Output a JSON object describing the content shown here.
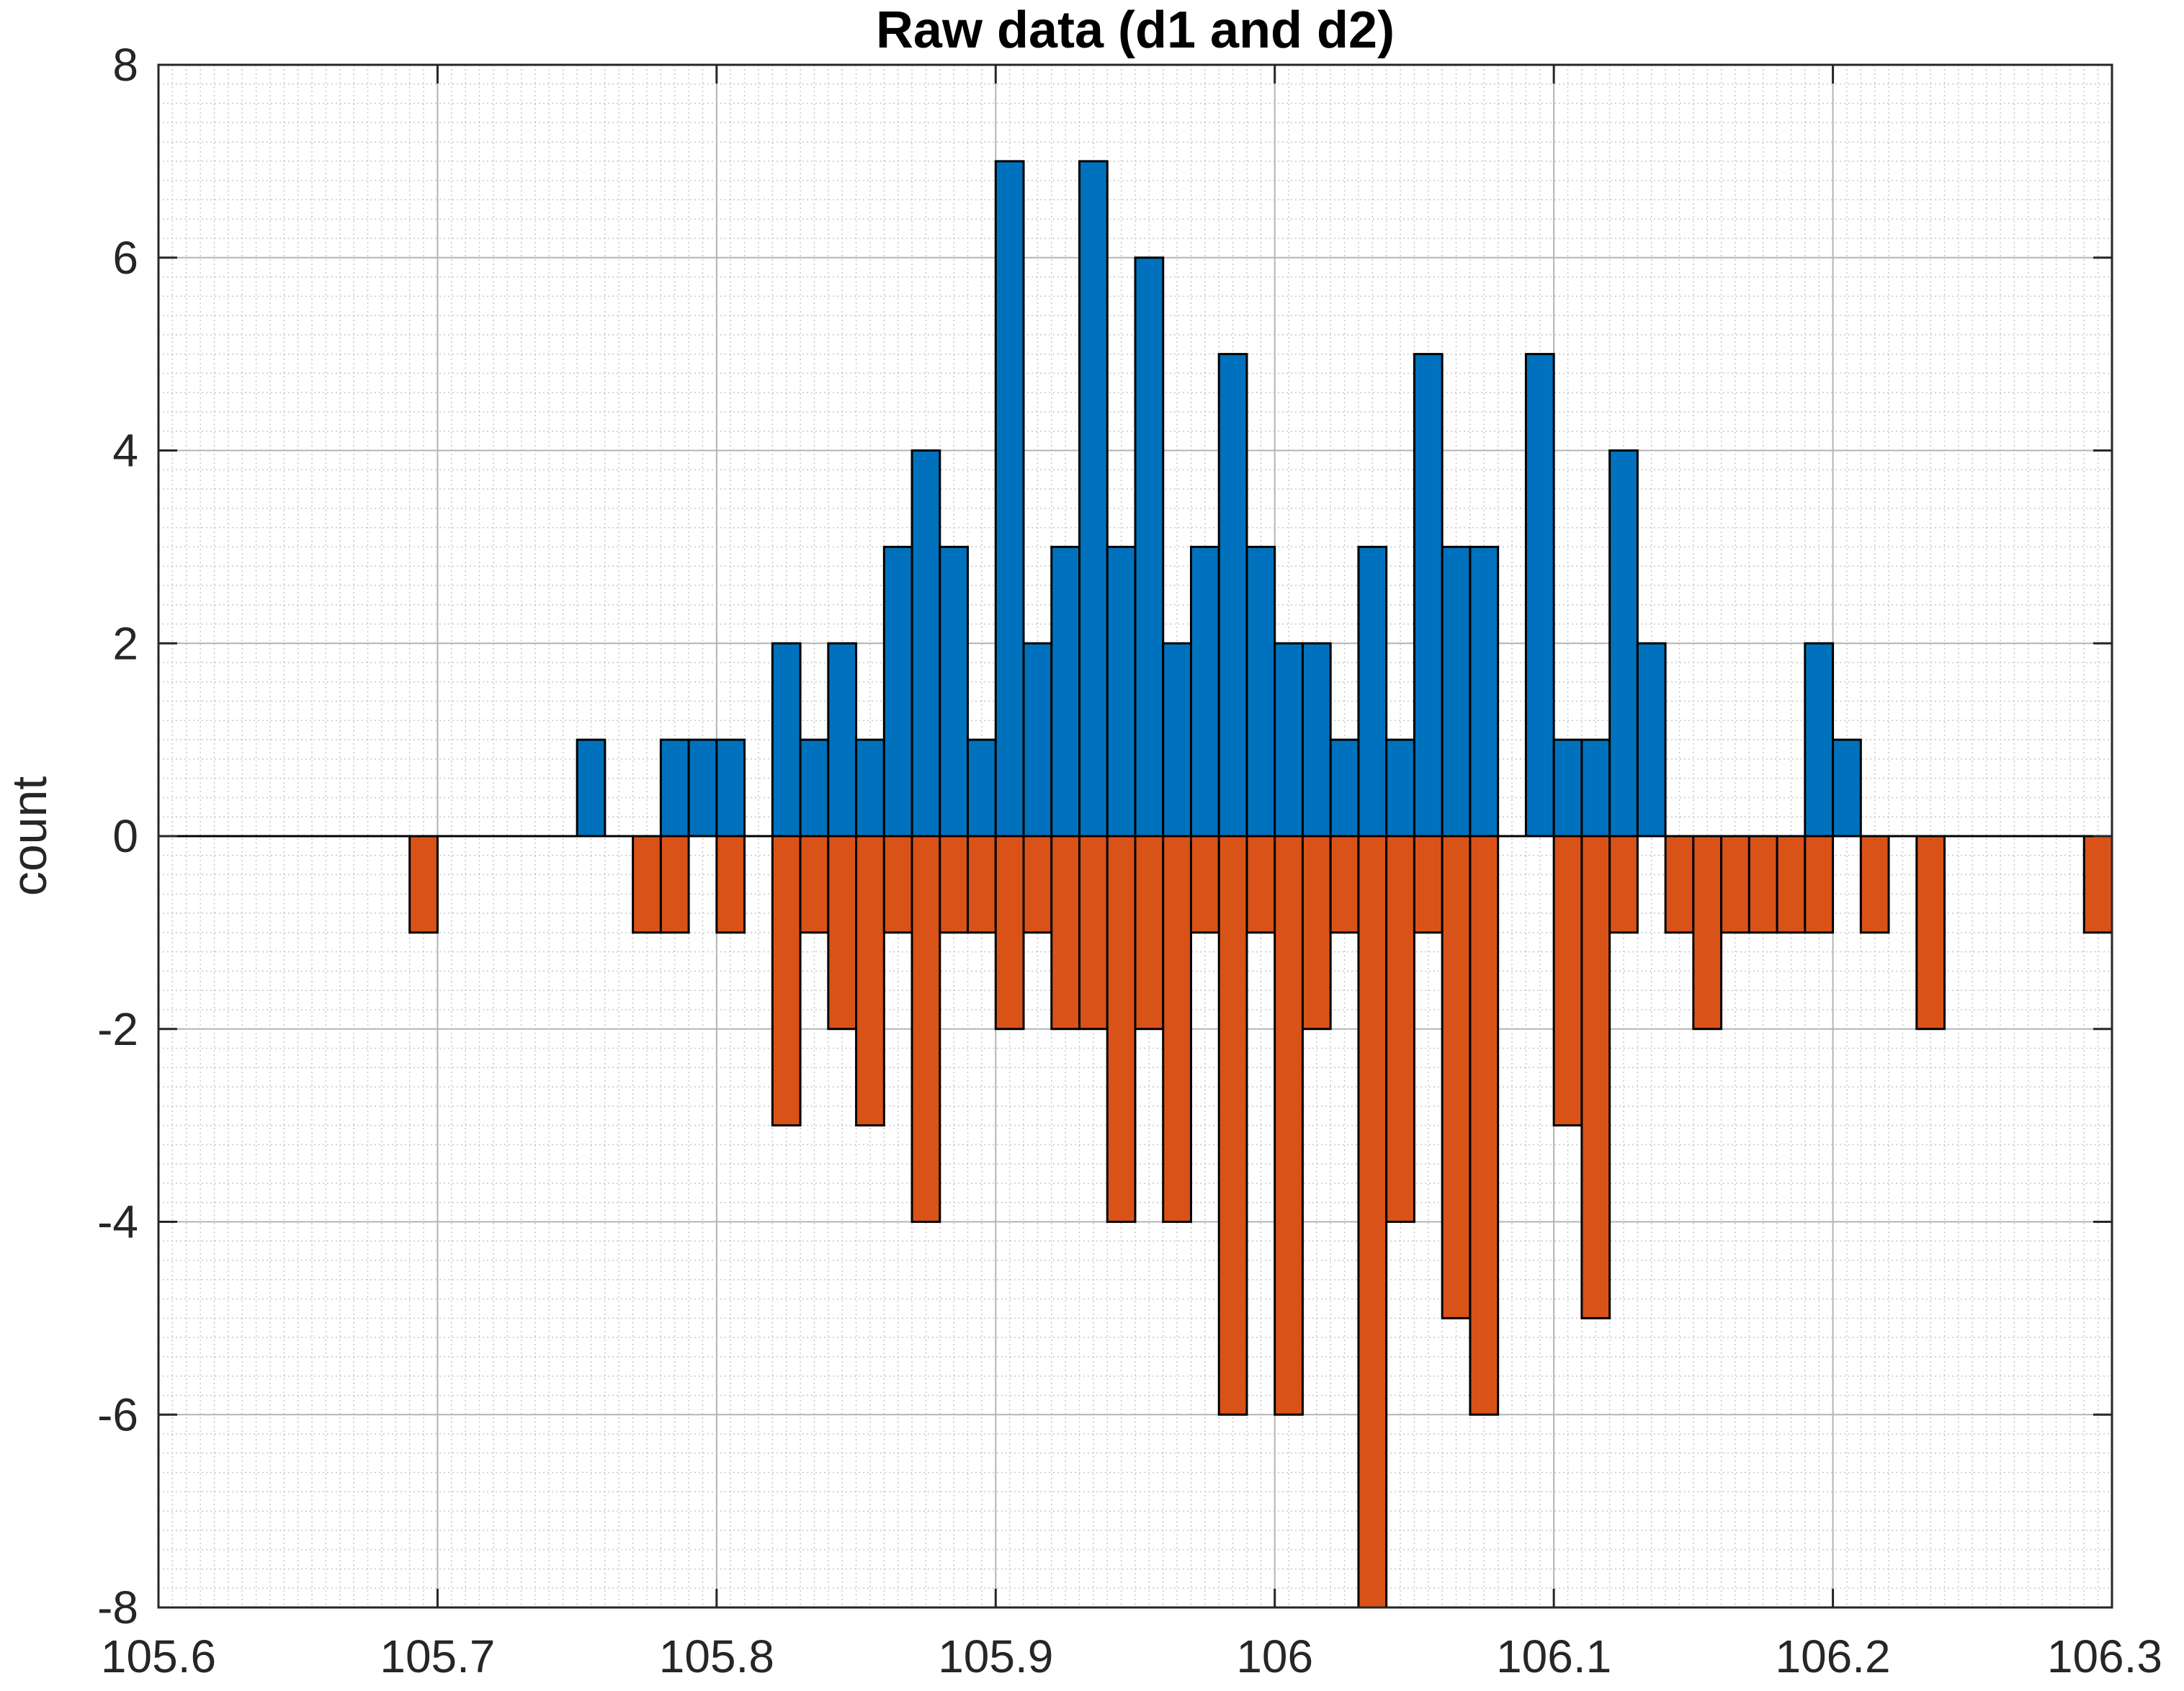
{
  "chart_data": {
    "type": "bar",
    "title": "Raw data (d1 and d2)",
    "xlabel": "",
    "ylabel": "count",
    "xlim": [
      105.6,
      106.3
    ],
    "ylim": [
      -8,
      8
    ],
    "grid": "major and minor",
    "bin_width": 0.01,
    "x_ticks": [
      105.6,
      105.7,
      105.8,
      105.9,
      106,
      106.1,
      106.2,
      106.3
    ],
    "x_tick_labels": [
      "105.6",
      "105.7",
      "105.8",
      "105.9",
      "106",
      "106.1",
      "106.2",
      "106.3"
    ],
    "y_ticks": [
      8,
      6,
      4,
      2,
      0,
      -2,
      -4,
      -6,
      -8
    ],
    "y_tick_labels": [
      "8",
      "6",
      "4",
      "2",
      "0",
      "-2",
      "-4",
      "-6",
      "-8"
    ],
    "series": [
      {
        "color": "#0072BD",
        "bin_starts": [
          105.75,
          105.78,
          105.79,
          105.8,
          105.82,
          105.83,
          105.84,
          105.85,
          105.86,
          105.87,
          105.88,
          105.89,
          105.9,
          105.91,
          105.92,
          105.93,
          105.94,
          105.95,
          105.96,
          105.97,
          105.98,
          105.99,
          106.0,
          106.01,
          106.02,
          106.03,
          106.04,
          106.05,
          106.06,
          106.07,
          106.09,
          106.1,
          106.11,
          106.12,
          106.13,
          106.19,
          106.2
        ],
        "values": [
          1,
          1,
          1,
          1,
          2,
          1,
          2,
          1,
          3,
          4,
          3,
          1,
          7,
          2,
          3,
          7,
          3,
          6,
          2,
          3,
          5,
          3,
          2,
          2,
          1,
          3,
          1,
          5,
          3,
          3,
          5,
          1,
          1,
          4,
          2,
          2,
          1
        ]
      },
      {
        "color": "#D95319",
        "bin_starts": [
          105.69,
          105.77,
          105.78,
          105.8,
          105.82,
          105.83,
          105.84,
          105.85,
          105.86,
          105.87,
          105.88,
          105.89,
          105.9,
          105.91,
          105.92,
          105.93,
          105.94,
          105.95,
          105.96,
          105.97,
          105.98,
          105.99,
          106.0,
          106.01,
          106.02,
          106.03,
          106.04,
          106.05,
          106.06,
          106.07,
          106.1,
          106.11,
          106.12,
          106.14,
          106.15,
          106.16,
          106.17,
          106.18,
          106.19,
          106.21,
          106.23,
          106.29
        ],
        "values": [
          -1,
          -1,
          -1,
          -1,
          -3,
          -1,
          -2,
          -3,
          -1,
          -4,
          -1,
          -1,
          -2,
          -1,
          -2,
          -2,
          -4,
          -2,
          -4,
          -1,
          -6,
          -1,
          -6,
          -2,
          -1,
          -8,
          -4,
          -1,
          -5,
          -6,
          -3,
          -5,
          -1,
          -1,
          -2,
          -1,
          -1,
          -1,
          -1,
          -1,
          -2,
          -1
        ]
      }
    ]
  }
}
